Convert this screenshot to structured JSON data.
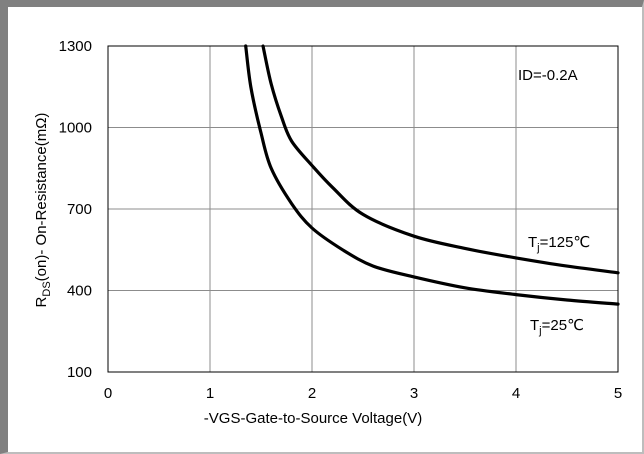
{
  "chart_data": {
    "type": "line",
    "title": "",
    "xlabel": "-VGS-Gate-to-Source Voltage(V)",
    "ylabel_main": "R",
    "ylabel_sub": "DS",
    "ylabel_rest": "(on)- On-Resistance(mΩ)",
    "xlim": [
      0,
      5
    ],
    "ylim": [
      100,
      1300
    ],
    "x_ticks": [
      0,
      1,
      2,
      3,
      4,
      5
    ],
    "y_ticks": [
      100,
      400,
      700,
      1000,
      1300
    ],
    "grid": true,
    "annotation": "ID=-0.2A",
    "series": [
      {
        "name": "Tj=125℃",
        "label_main": "T",
        "label_sub": "j",
        "label_rest": "=125℃",
        "color": "#000000",
        "x": [
          1.52,
          1.6,
          1.7,
          1.8,
          2.0,
          2.2,
          2.5,
          3.0,
          3.5,
          4.0,
          4.5,
          5.0
        ],
        "y": [
          1300,
          1160,
          1040,
          950,
          860,
          780,
          680,
          600,
          555,
          520,
          490,
          465
        ]
      },
      {
        "name": "Tj=25℃",
        "label_main": "T",
        "label_sub": "j",
        "label_rest": "=25℃",
        "color": "#000000",
        "x": [
          1.35,
          1.4,
          1.5,
          1.6,
          1.8,
          2.0,
          2.3,
          2.6,
          3.0,
          3.5,
          4.0,
          4.5,
          5.0
        ],
        "y": [
          1300,
          1150,
          980,
          850,
          720,
          630,
          550,
          490,
          450,
          410,
          385,
          365,
          350
        ]
      }
    ]
  }
}
